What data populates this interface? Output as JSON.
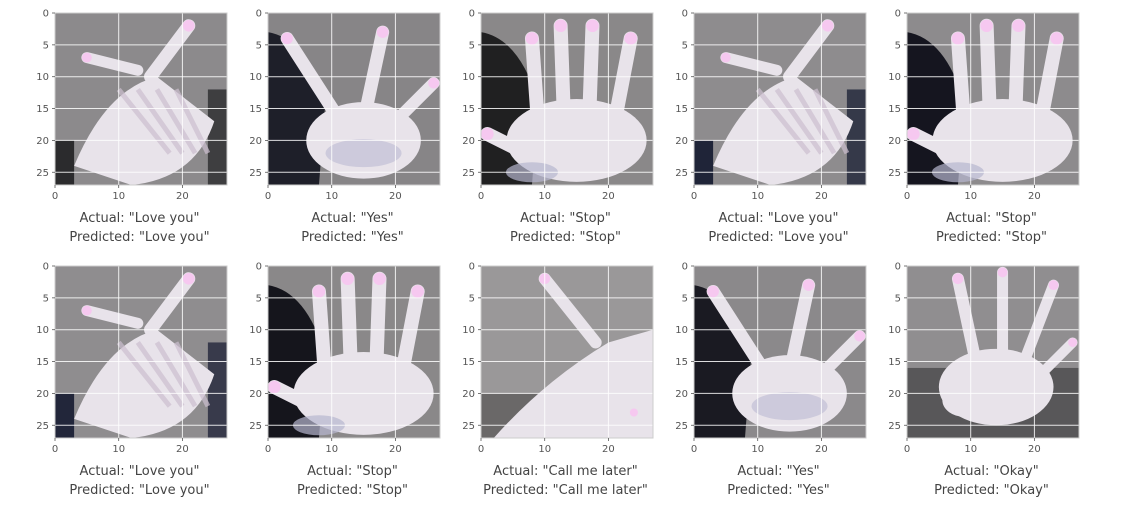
{
  "axes": {
    "y_ticks": [
      "0",
      "5",
      "10",
      "15",
      "20",
      "25"
    ],
    "x_ticks": [
      "0",
      "10",
      "20"
    ],
    "x_range": [
      0,
      27
    ],
    "y_range": [
      0,
      27
    ],
    "grid": true
  },
  "caption_prefix": {
    "actual": "Actual: ",
    "predicted": "Predicted: "
  },
  "panels": [
    {
      "actual": "\"Love you\"",
      "predicted": "\"Love you\"",
      "gesture": "love-you",
      "bg": "#8c8a8c",
      "dark": "#2b2b2d"
    },
    {
      "actual": "\"Yes\"",
      "predicted": "\"Yes\"",
      "gesture": "yes",
      "bg": "#878587",
      "dark": "#1e1f29"
    },
    {
      "actual": "\"Stop\"",
      "predicted": "\"Stop\"",
      "gesture": "stop",
      "bg": "#8a8889",
      "dark": "#202021"
    },
    {
      "actual": "\"Love you\"",
      "predicted": "\"Love you\"",
      "gesture": "love-you",
      "bg": "#8e8c8e",
      "dark": "#1f2438"
    },
    {
      "actual": "\"Stop\"",
      "predicted": "\"Stop\"",
      "gesture": "stop",
      "bg": "#8d8b8d",
      "dark": "#15151f"
    },
    {
      "actual": "\"Love you\"",
      "predicted": "\"Love you\"",
      "gesture": "love-you",
      "bg": "#8f8d8f",
      "dark": "#22263a"
    },
    {
      "actual": "\"Stop\"",
      "predicted": "\"Stop\"",
      "gesture": "stop",
      "bg": "#8a8889",
      "dark": "#15151c"
    },
    {
      "actual": "\"Call me later\"",
      "predicted": "\"Call me later\"",
      "gesture": "call",
      "bg": "#9a9899",
      "dark": "#3a3838"
    },
    {
      "actual": "\"Yes\"",
      "predicted": "\"Yes\"",
      "gesture": "yes",
      "bg": "#8b898b",
      "dark": "#1a1a22"
    },
    {
      "actual": "\"Okay\"",
      "predicted": "\"Okay\"",
      "gesture": "okay",
      "bg": "#908e90",
      "dark": "#2a2a2c"
    }
  ],
  "colors": {
    "hand": "#e8e3ea",
    "highlight": "#f6c8f0",
    "shadow": "#b7b6cf"
  }
}
